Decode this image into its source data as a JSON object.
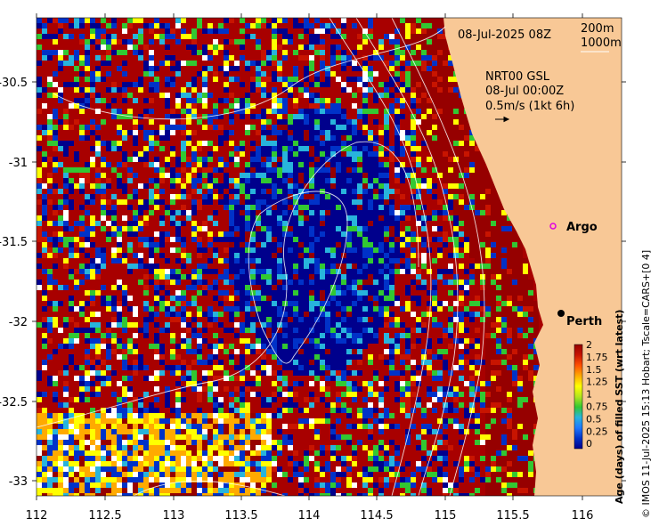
{
  "map": {
    "date_label": "08-Jul-2025 08Z",
    "isobath_labels": [
      "200m",
      "1000m"
    ],
    "model_label": "NRT00 GSL",
    "model_time": "08-Jul 00:00Z",
    "current_scale": "0.5m/s (1kt 6h)",
    "lon_ticks": [
      "112",
      "112.5",
      "113",
      "113.5",
      "114",
      "114.5",
      "115",
      "115.5",
      "116"
    ],
    "lat_ticks": [
      "-30.5",
      "-31",
      "-31.5",
      "-32",
      "-32.5",
      "-33"
    ],
    "lon_range": [
      112,
      116.1
    ],
    "lat_range": [
      -33.15,
      -30.1
    ],
    "places": [
      {
        "name": "Argo",
        "lon": 115.82,
        "lat": -31.52,
        "marker": "magenta-circle"
      },
      {
        "name": "Perth",
        "lon": 115.86,
        "lat": -31.95,
        "marker": "black-dot"
      }
    ],
    "land_color": "#f8c896"
  },
  "colorbar": {
    "title": "Age (days) of filled SST (wrt latest)",
    "ticks": [
      "2",
      "1.75",
      "1.5",
      "1.25",
      "1",
      "0.75",
      "0.5",
      "0.25",
      "0"
    ],
    "colors": [
      "#00008c",
      "#0032c8",
      "#1e78ff",
      "#28b4dc",
      "#32c832",
      "#b4e61e",
      "#ffff00",
      "#ffaa00",
      "#ff5000",
      "#c81400",
      "#960000"
    ]
  },
  "credit": "© IMOS 11-Jul-2025 15:13 Hobart; Tscale=CARS+[0 4]"
}
